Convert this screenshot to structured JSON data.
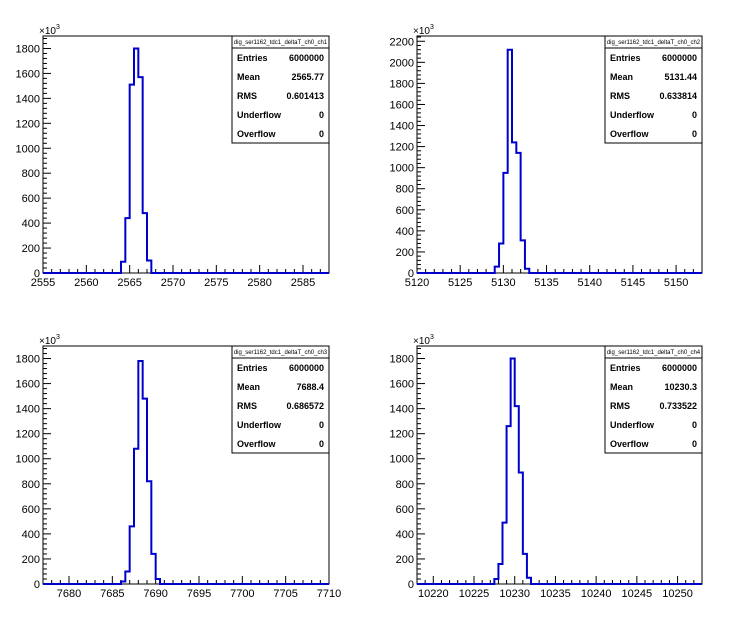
{
  "chart_data": [
    {
      "type": "histogram",
      "title": "dig_ser1162_tdc1_deltaT_ch0_ch1",
      "multiplier_label": "×10",
      "multiplier_exp": "3",
      "xlim": [
        2555,
        2588
      ],
      "ylim": [
        0,
        1900
      ],
      "xticks": [
        2555,
        2560,
        2565,
        2570,
        2575,
        2580,
        2585
      ],
      "yticks": [
        0,
        200,
        400,
        600,
        800,
        1000,
        1200,
        1400,
        1600,
        1800
      ],
      "bin_width": 0.5,
      "bins": [
        [
          2564.0,
          90
        ],
        [
          2564.5,
          440
        ],
        [
          2565.0,
          1510
        ],
        [
          2565.5,
          1800
        ],
        [
          2566.0,
          1570
        ],
        [
          2566.5,
          480
        ],
        [
          2567.0,
          100
        ],
        [
          2567.5,
          0
        ]
      ],
      "stats": {
        "Entries": "6000000",
        "Mean": "2565.77",
        "RMS": "0.601413",
        "Underflow": "0",
        "Overflow": "0"
      }
    },
    {
      "type": "histogram",
      "title": "dig_ser1162_tdc1_deltaT_ch0_ch2",
      "multiplier_label": "×10",
      "multiplier_exp": "3",
      "xlim": [
        5120,
        5153
      ],
      "ylim": [
        0,
        2250
      ],
      "xticks": [
        5120,
        5125,
        5130,
        5135,
        5140,
        5145,
        5150
      ],
      "yticks": [
        0,
        200,
        400,
        600,
        800,
        1000,
        1200,
        1400,
        1600,
        1800,
        2000,
        2200
      ],
      "bin_width": 0.5,
      "bins": [
        [
          5129.0,
          60
        ],
        [
          5129.5,
          280
        ],
        [
          5130.0,
          950
        ],
        [
          5130.5,
          2120
        ],
        [
          5131.0,
          1240
        ],
        [
          5131.5,
          1140
        ],
        [
          5132.0,
          310
        ],
        [
          5132.5,
          40
        ]
      ],
      "stats": {
        "Entries": "6000000",
        "Mean": "5131.44",
        "RMS": "0.633814",
        "Underflow": "0",
        "Overflow": "0"
      }
    },
    {
      "type": "histogram",
      "title": "dig_ser1162_tdc1_deltaT_ch0_ch3",
      "multiplier_label": "×10",
      "multiplier_exp": "3",
      "xlim": [
        7677,
        7710
      ],
      "ylim": [
        0,
        1900
      ],
      "xticks": [
        7680,
        7685,
        7690,
        7695,
        7700,
        7705,
        7710
      ],
      "yticks": [
        0,
        200,
        400,
        600,
        800,
        1000,
        1200,
        1400,
        1600,
        1800
      ],
      "bin_width": 0.5,
      "bins": [
        [
          7686.0,
          20
        ],
        [
          7686.5,
          100
        ],
        [
          7687.0,
          460
        ],
        [
          7687.5,
          1080
        ],
        [
          7688.0,
          1780
        ],
        [
          7688.5,
          1480
        ],
        [
          7689.0,
          820
        ],
        [
          7689.5,
          240
        ],
        [
          7690.0,
          40
        ]
      ],
      "stats": {
        "Entries": "6000000",
        "Mean": "7688.4",
        "RMS": "0.686572",
        "Underflow": "0",
        "Overflow": "0"
      }
    },
    {
      "type": "histogram",
      "title": "dig_ser1162_tdc1_deltaT_ch0_ch4",
      "multiplier_label": "×10",
      "multiplier_exp": "3",
      "xlim": [
        10218,
        10253
      ],
      "ylim": [
        0,
        1900
      ],
      "xticks": [
        10220,
        10225,
        10230,
        10235,
        10240,
        10245,
        10250
      ],
      "yticks": [
        0,
        200,
        400,
        600,
        800,
        1000,
        1200,
        1400,
        1600,
        1800
      ],
      "bin_width": 0.5,
      "bins": [
        [
          10227.5,
          40
        ],
        [
          10228.0,
          160
        ],
        [
          10228.5,
          490
        ],
        [
          10229.0,
          1260
        ],
        [
          10229.5,
          1800
        ],
        [
          10230.0,
          1420
        ],
        [
          10230.5,
          890
        ],
        [
          10231.0,
          240
        ],
        [
          10231.5,
          50
        ]
      ],
      "stats": {
        "Entries": "6000000",
        "Mean": "10230.3",
        "RMS": "0.733522",
        "Underflow": "0",
        "Overflow": "0"
      }
    }
  ]
}
